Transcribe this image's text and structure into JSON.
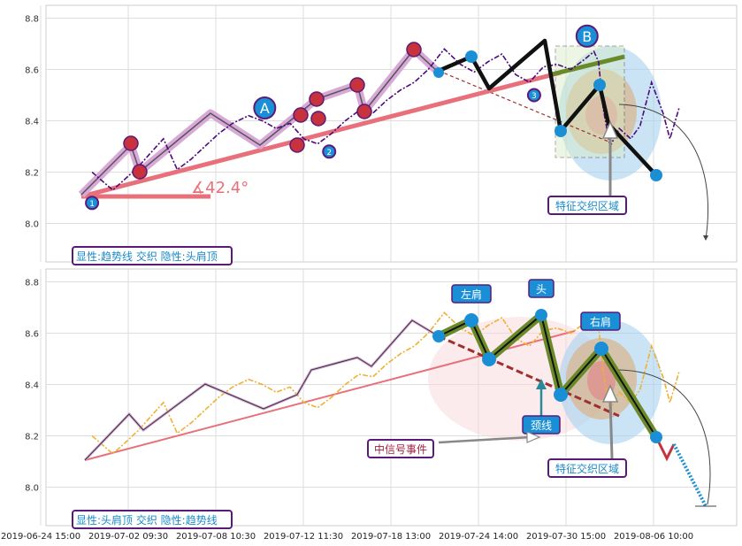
{
  "chart_data": [
    {
      "type": "line",
      "panel": "top",
      "ylim": [
        7.85,
        8.85
      ],
      "yticks": [
        8.0,
        8.2,
        8.4,
        8.6,
        8.8
      ],
      "grid": true,
      "series": [
        {
          "values": [
            [
              0.0,
              8.2
            ],
            [
              0.9,
              8.13
            ],
            [
              1.4,
              8.17
            ],
            [
              2.0,
              8.22
            ],
            [
              2.5,
              8.27
            ],
            [
              3.1,
              8.33
            ],
            [
              3.7,
              8.21
            ],
            [
              4.3,
              8.25
            ],
            [
              4.9,
              8.3
            ],
            [
              5.5,
              8.35
            ],
            [
              6.1,
              8.39
            ],
            [
              6.8,
              8.42
            ],
            [
              7.4,
              8.4
            ],
            [
              8.0,
              8.37
            ],
            [
              8.6,
              8.39
            ],
            [
              9.2,
              8.33
            ],
            [
              9.8,
              8.31
            ],
            [
              10.4,
              8.35
            ],
            [
              11.0,
              8.4
            ],
            [
              11.6,
              8.44
            ],
            [
              12.2,
              8.43
            ],
            [
              12.8,
              8.48
            ],
            [
              13.4,
              8.52
            ],
            [
              14.0,
              8.55
            ],
            [
              14.6,
              8.6
            ],
            [
              15.3,
              8.68
            ],
            [
              16.0,
              8.62
            ],
            [
              16.6,
              8.59
            ],
            [
              17.2,
              8.63
            ],
            [
              17.8,
              8.66
            ],
            [
              18.4,
              8.58
            ],
            [
              19.0,
              8.55
            ],
            [
              19.6,
              8.61
            ],
            [
              20.2,
              8.62
            ],
            [
              20.8,
              8.6
            ],
            [
              21.4,
              8.64
            ],
            [
              21.8,
              8.67
            ],
            [
              22.0,
              8.63
            ],
            [
              22.2,
              8.45
            ],
            [
              22.5,
              8.3
            ],
            [
              22.9,
              8.37
            ],
            [
              23.4,
              8.33
            ],
            [
              23.8,
              8.38
            ],
            [
              24.3,
              8.55
            ],
            [
              24.8,
              8.43
            ],
            [
              25.1,
              8.33
            ],
            [
              25.5,
              8.45
            ]
          ]
        }
      ],
      "trend_points": [
        {
          "label": "1",
          "x": 0.0,
          "y": 8.08
        },
        {
          "label": "A",
          "x": 7.5,
          "y": 8.45
        },
        {
          "label": "2",
          "x": 10.3,
          "y": 8.28
        },
        {
          "label": "3",
          "x": 19.2,
          "y": 8.5
        },
        {
          "label": "B",
          "x": 21.5,
          "y": 8.73
        }
      ],
      "angle_label": "∡42.4°",
      "caption": "显性:趋势线 交织 隐性:头肩顶",
      "annotation": "特征交织区域"
    },
    {
      "type": "line",
      "panel": "bottom",
      "ylim": [
        7.85,
        8.85
      ],
      "yticks": [
        8.0,
        8.2,
        8.4,
        8.6,
        8.8
      ],
      "grid": true,
      "pattern_labels": [
        "左肩",
        "头",
        "右肩",
        "颈线"
      ],
      "event_label": "中信号事件",
      "caption": "显性:头肩顶 交织 隐性:趋势线",
      "annotation": "特征交织区域"
    }
  ],
  "x_axis": {
    "tick_labels": [
      "2019-06-24 15:00",
      "2019-07-02 09:30",
      "2019-07-08 10:30",
      "2019-07-12 11:30",
      "2019-07-18 13:00",
      "2019-07-24 14:00",
      "2019-07-30 15:00",
      "2019-08-06 10:00"
    ],
    "range": [
      -2.0,
      28.0
    ]
  },
  "colors": {
    "price_top": "#4b0a7a",
    "price_bottom": "#f0b030",
    "trend": "#e8707a",
    "marker_blue": "#1b8fd6",
    "marker_red": "#c8323c",
    "pattern_green": "#6a8a2a",
    "neck_dash": "#a03030",
    "label_box": "#5a1a7a",
    "label_text": "#1a8ac8"
  }
}
